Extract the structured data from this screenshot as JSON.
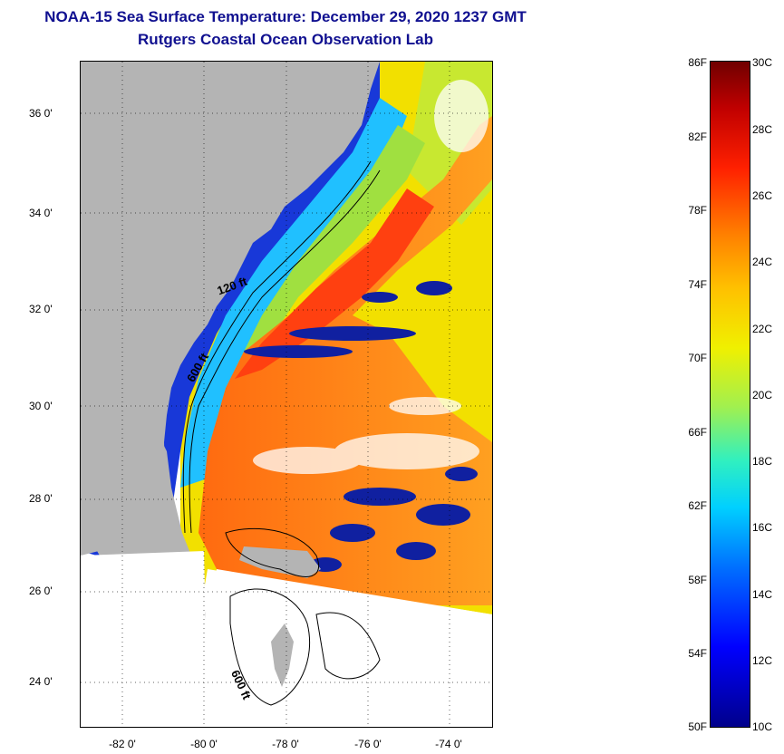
{
  "title_line1": "NOAA-15 Sea Surface Temperature:  December 29, 2020 1237 GMT",
  "title_line2": "Rutgers Coastal Ocean Observation Lab",
  "lat_labels": [
    "36 0'",
    "34 0'",
    "32 0'",
    "30 0'",
    "28 0'",
    "26 0'",
    "24 0'"
  ],
  "lon_labels": [
    "-82 0'",
    "-80 0'",
    "-78 0'",
    "-76 0'",
    "-74 0'"
  ],
  "contour_labels": [
    "120 ft",
    "600 ft",
    "600 ft"
  ],
  "colorbar": {
    "fahrenheit": [
      "86F",
      "82F",
      "78F",
      "74F",
      "70F",
      "66F",
      "62F",
      "58F",
      "54F",
      "50F"
    ],
    "celsius": [
      "30C",
      "28C",
      "26C",
      "24C",
      "22C",
      "20C",
      "18C",
      "16C",
      "14C",
      "12C",
      "10C"
    ],
    "colors": {
      "min": "#00008b",
      "mid": "#f0f000",
      "max": "#700000"
    }
  },
  "colors": {
    "land": "#b4b4b4",
    "title": "#101090",
    "gulf_stream": "#ff7a10",
    "shelf": "#00c8ff",
    "coastal": "#1030d0"
  }
}
